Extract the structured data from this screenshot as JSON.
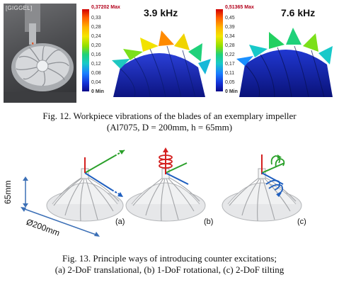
{
  "fig12": {
    "photo_tag": "[GIGGEL]",
    "left": {
      "max_label": "0,37202 Max",
      "ticks": [
        "0,33",
        "0,28",
        "0,24",
        "0,20",
        "0,16",
        "0,12",
        "0,08",
        "0,04"
      ],
      "min_label": "0 Min",
      "frequency": "3.9 kHz"
    },
    "right": {
      "max_label": "0,51365 Max",
      "ticks": [
        "0,45",
        "0,39",
        "0,34",
        "0,28",
        "0,22",
        "0,17",
        "0,11",
        "0,05"
      ],
      "min_label": "0 Min",
      "frequency": "7.6 kHz"
    },
    "caption_line1": "Fig. 12. Workpiece vibrations of the blades of an exemplary impeller",
    "caption_line2": "(Al7075, D = 200mm, h = 65mm)"
  },
  "fig13": {
    "height_label": "65mm",
    "diameter_label": "Ø200mm",
    "panels": [
      "(a)",
      "(b)",
      "(c)"
    ],
    "caption_line1": "Fig. 13. Principle ways of introducing counter excitations;",
    "caption_line2": "(a) 2-DoF translational, (b) 1-DoF rotational, (c) 2-DoF tilting"
  },
  "colors": {
    "legend_max": "#b3001b",
    "arrow_green": "#2aa02a",
    "arrow_blue": "#1f5fbf",
    "arrow_red": "#d42020",
    "dimension_blue": "#3b6fb6"
  }
}
